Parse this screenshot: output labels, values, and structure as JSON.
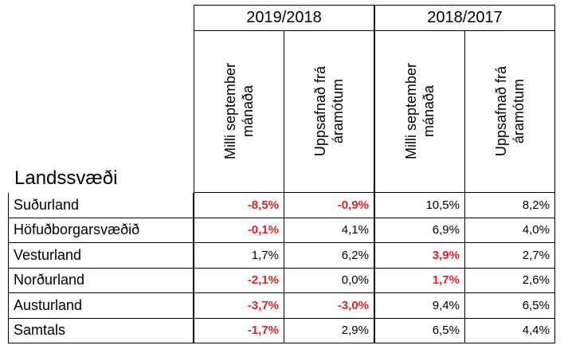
{
  "table": {
    "region_header": "Landssvæði",
    "periods": [
      "2019/2018",
      "2018/2017"
    ],
    "subheaders": [
      "Milli september\nmánaða",
      "Uppsafnað frá\náramótum",
      "Milli september\nmánaða",
      "Uppsafnað frá\náramótum"
    ],
    "rows": [
      {
        "region": "Suðurland",
        "values": [
          "-8,5%",
          "-0,9%",
          "10,5%",
          "8,2%"
        ]
      },
      {
        "region": "Höfuðborgarsvæðið",
        "values": [
          "-0,1%",
          "4,1%",
          "6,9%",
          "4,0%"
        ]
      },
      {
        "region": "Vesturland",
        "values": [
          "1,7%",
          "6,2%",
          "3,9%",
          "2,7%"
        ]
      },
      {
        "region": "Norðurland",
        "values": [
          "-2,1%",
          "0,0%",
          "1,7%",
          "2,6%"
        ]
      },
      {
        "region": "Austurland",
        "values": [
          "-3,7%",
          "-3,0%",
          "9,4%",
          "6,5%"
        ]
      },
      {
        "region": "Samtals",
        "values": [
          "-1,7%",
          "2,9%",
          "6,5%",
          "4,4%"
        ]
      }
    ],
    "highlighted": [
      [
        0,
        0
      ],
      [
        0,
        1
      ],
      [
        1,
        0
      ],
      [
        2,
        2
      ],
      [
        3,
        0
      ],
      [
        3,
        2
      ],
      [
        4,
        0
      ],
      [
        4,
        1
      ],
      [
        5,
        0
      ]
    ],
    "highlight_color": "#e0242b"
  }
}
